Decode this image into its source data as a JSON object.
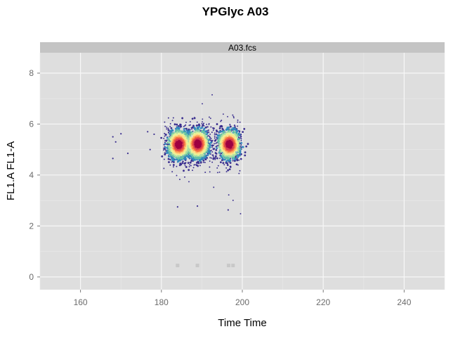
{
  "chart_data": {
    "type": "scatter",
    "title": "YPGlyc A03",
    "panel_label": "A03.fcs",
    "xlabel": "Time Time",
    "ylabel": "FL1.A FL1-A",
    "xlim": [
      150,
      250
    ],
    "ylim": [
      -0.5,
      8.8
    ],
    "x_ticks": [
      160,
      180,
      200,
      220,
      240
    ],
    "y_ticks": [
      0,
      2,
      4,
      6,
      8
    ],
    "grid": true,
    "density_colors": [
      "#3b2f8f",
      "#3288bd",
      "#66c2a5",
      "#abdda4",
      "#e6f598",
      "#fee08b",
      "#fdae61",
      "#f46d43",
      "#d53e4f",
      "#9e0142"
    ],
    "clusters": [
      {
        "x": 184.3,
        "y": 5.2
      },
      {
        "x": 189.0,
        "y": 5.22
      },
      {
        "x": 196.8,
        "y": 5.2
      }
    ],
    "outliers": [
      {
        "x": 168.0,
        "y": 5.5
      },
      {
        "x": 168.0,
        "y": 4.65
      },
      {
        "x": 168.7,
        "y": 5.3
      },
      {
        "x": 170.0,
        "y": 5.62
      },
      {
        "x": 171.7,
        "y": 4.85
      },
      {
        "x": 184.0,
        "y": 2.75
      },
      {
        "x": 188.9,
        "y": 2.78
      },
      {
        "x": 196.5,
        "y": 2.63
      },
      {
        "x": 176.6,
        "y": 5.7
      },
      {
        "x": 177.2,
        "y": 5.0
      },
      {
        "x": 178.2,
        "y": 5.6
      }
    ],
    "zero_markers": [
      {
        "x": 184.0,
        "y": 0.45
      },
      {
        "x": 188.9,
        "y": 0.45
      },
      {
        "x": 196.6,
        "y": 0.45
      },
      {
        "x": 197.7,
        "y": 0.45
      }
    ]
  }
}
